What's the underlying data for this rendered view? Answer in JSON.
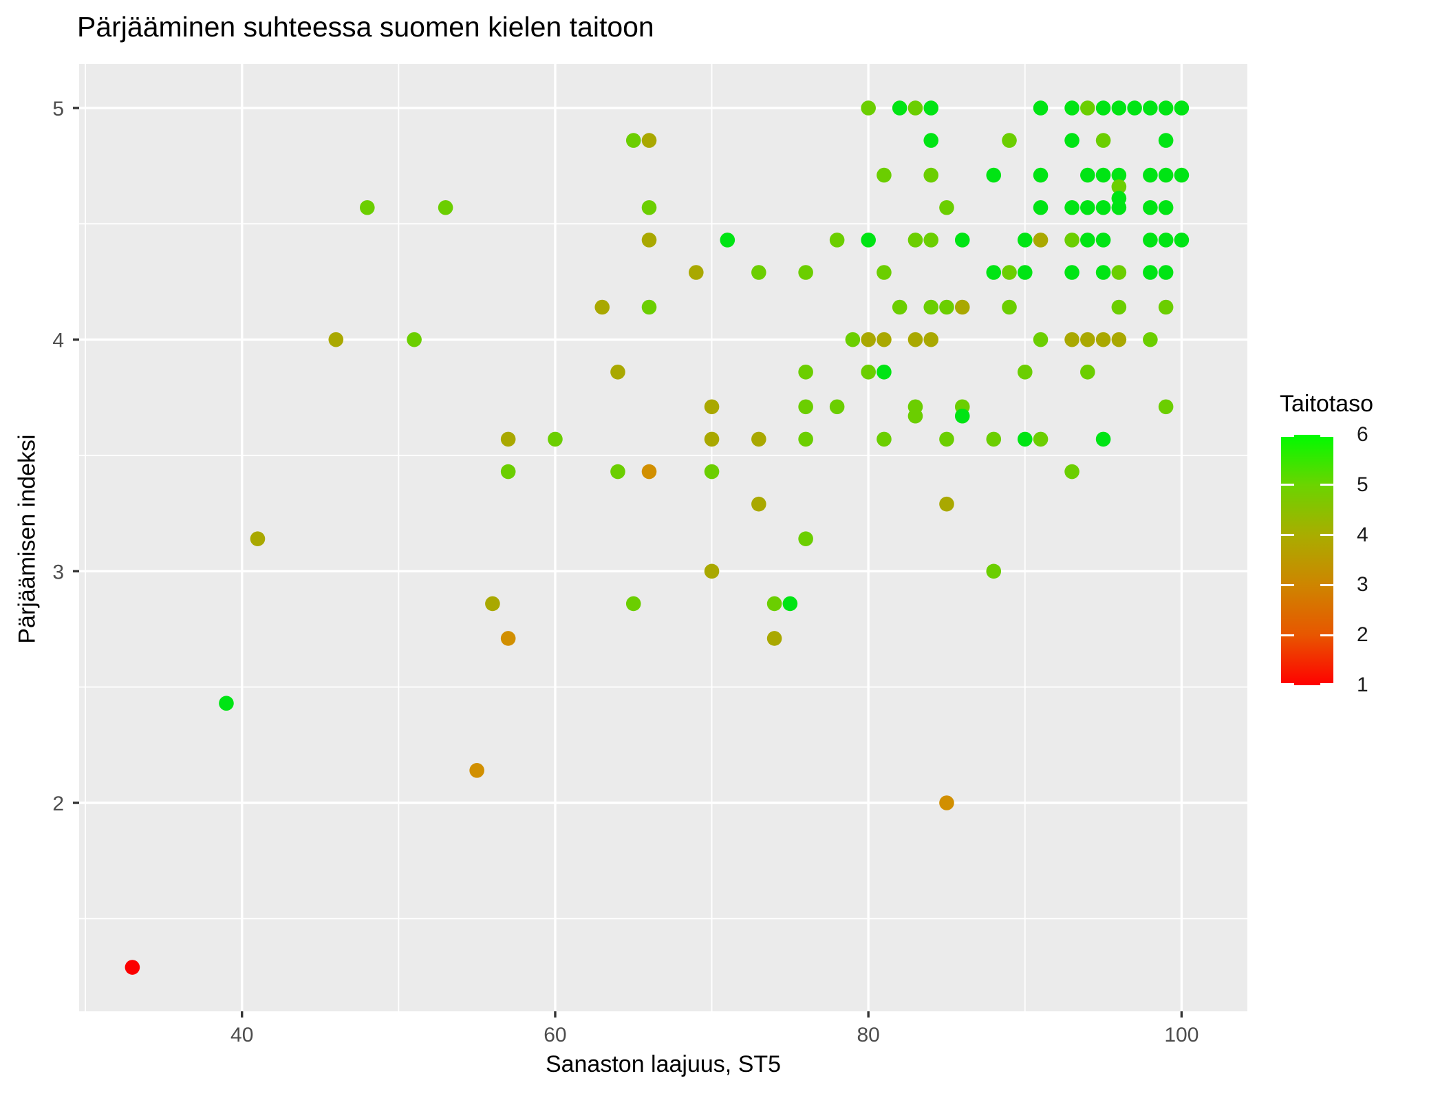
{
  "title": "Pärjääminen suhteessa suomen kielen taitoon",
  "chart_data": {
    "type": "scatter",
    "title": "Pärjääminen suhteessa suomen kielen taitoon",
    "xlabel": "Sanaston laajuus, ST5",
    "ylabel": "Pärjäämisen indeksi",
    "x_ticks": [
      40,
      60,
      80,
      100
    ],
    "x_minor_ticks": [
      30,
      50,
      70,
      90
    ],
    "x_range": [
      29.6,
      104.2
    ],
    "y_ticks": [
      5,
      4,
      3,
      2
    ],
    "y_minor_ticks": [
      4.5,
      3.5,
      2.5,
      1.5
    ],
    "y_range": [
      1.1,
      5.19
    ],
    "grid": true,
    "panel_background": "#EBEBEB",
    "gridline_color": "#FFFFFF",
    "tick_color": "#333333",
    "tick_label_color": "#4D4D4D",
    "legend": {
      "title": "Taitotaso",
      "position": "right",
      "min": 1,
      "max": 6,
      "ticks": [
        6,
        5,
        4,
        3,
        2,
        1
      ],
      "gradient_stops": [
        "#FF0000",
        "#E85600",
        "#CE8500",
        "#A9AD00",
        "#6BD400",
        "#00FB00"
      ]
    },
    "color_scale": {
      "1": "#FB0000",
      "2": "#E85600",
      "3": "#D18F00",
      "4": "#A9A800",
      "5": "#6BCE00",
      "6": "#00E414"
    },
    "series_name": "Taitotaso",
    "points": [
      [
        80,
        5.0,
        5
      ],
      [
        82,
        5.0,
        6
      ],
      [
        83,
        5.0,
        5
      ],
      [
        84,
        5.0,
        6
      ],
      [
        91,
        5.0,
        6
      ],
      [
        93,
        5.0,
        6
      ],
      [
        94,
        5.0,
        5
      ],
      [
        95,
        5.0,
        6
      ],
      [
        96,
        5.0,
        6
      ],
      [
        97,
        5.0,
        6
      ],
      [
        98,
        5.0,
        6
      ],
      [
        99,
        5.0,
        6
      ],
      [
        100,
        5.0,
        6
      ],
      [
        65,
        4.86,
        5
      ],
      [
        66,
        4.86,
        4
      ],
      [
        84,
        4.86,
        6
      ],
      [
        89,
        4.86,
        5
      ],
      [
        93,
        4.86,
        6
      ],
      [
        95,
        4.86,
        5
      ],
      [
        99,
        4.86,
        6
      ],
      [
        81,
        4.71,
        5
      ],
      [
        84,
        4.71,
        5
      ],
      [
        88,
        4.71,
        6
      ],
      [
        91,
        4.71,
        6
      ],
      [
        94,
        4.71,
        6
      ],
      [
        95,
        4.71,
        6
      ],
      [
        96,
        4.71,
        6
      ],
      [
        96,
        4.66,
        5
      ],
      [
        98,
        4.71,
        6
      ],
      [
        99,
        4.71,
        6
      ],
      [
        100,
        4.71,
        6
      ],
      [
        48,
        4.57,
        5
      ],
      [
        53,
        4.57,
        5
      ],
      [
        66,
        4.57,
        5
      ],
      [
        85,
        4.57,
        5
      ],
      [
        91,
        4.57,
        6
      ],
      [
        93,
        4.57,
        6
      ],
      [
        94,
        4.57,
        6
      ],
      [
        95,
        4.57,
        6
      ],
      [
        96,
        4.61,
        6
      ],
      [
        96,
        4.57,
        6
      ],
      [
        98,
        4.57,
        6
      ],
      [
        99,
        4.57,
        6
      ],
      [
        66,
        4.43,
        4
      ],
      [
        71,
        4.43,
        6
      ],
      [
        78,
        4.43,
        5
      ],
      [
        80,
        4.43,
        6
      ],
      [
        83,
        4.43,
        5
      ],
      [
        84,
        4.43,
        5
      ],
      [
        86,
        4.43,
        6
      ],
      [
        90,
        4.43,
        6
      ],
      [
        91,
        4.43,
        4
      ],
      [
        93,
        4.43,
        5
      ],
      [
        94,
        4.43,
        6
      ],
      [
        95,
        4.43,
        6
      ],
      [
        98,
        4.43,
        6
      ],
      [
        99,
        4.43,
        6
      ],
      [
        100,
        4.43,
        6
      ],
      [
        69,
        4.29,
        4
      ],
      [
        73,
        4.29,
        5
      ],
      [
        76,
        4.29,
        5
      ],
      [
        81,
        4.29,
        5
      ],
      [
        88,
        4.29,
        6
      ],
      [
        89,
        4.29,
        5
      ],
      [
        90,
        4.29,
        6
      ],
      [
        93,
        4.29,
        6
      ],
      [
        95,
        4.29,
        6
      ],
      [
        96,
        4.29,
        5
      ],
      [
        98,
        4.29,
        6
      ],
      [
        99,
        4.29,
        6
      ],
      [
        63,
        4.14,
        4
      ],
      [
        66,
        4.14,
        5
      ],
      [
        82,
        4.14,
        5
      ],
      [
        84,
        4.14,
        5
      ],
      [
        85,
        4.14,
        5
      ],
      [
        86,
        4.14,
        4
      ],
      [
        89,
        4.14,
        5
      ],
      [
        96,
        4.14,
        5
      ],
      [
        99,
        4.14,
        5
      ],
      [
        46,
        4.0,
        4
      ],
      [
        51,
        4.0,
        5
      ],
      [
        79,
        4.0,
        5
      ],
      [
        80,
        4.0,
        4
      ],
      [
        81,
        4.0,
        4
      ],
      [
        83,
        4.0,
        4
      ],
      [
        84,
        4.0,
        4
      ],
      [
        91,
        4.0,
        5
      ],
      [
        93,
        4.0,
        4
      ],
      [
        94,
        4.0,
        4
      ],
      [
        95,
        4.0,
        4
      ],
      [
        96,
        4.0,
        4
      ],
      [
        98,
        4.0,
        5
      ],
      [
        64,
        3.86,
        4
      ],
      [
        76,
        3.86,
        5
      ],
      [
        80,
        3.86,
        5
      ],
      [
        81,
        3.86,
        6
      ],
      [
        90,
        3.86,
        5
      ],
      [
        94,
        3.86,
        5
      ],
      [
        70,
        3.71,
        4
      ],
      [
        76,
        3.71,
        5
      ],
      [
        78,
        3.71,
        5
      ],
      [
        83,
        3.71,
        5
      ],
      [
        83,
        3.67,
        5
      ],
      [
        86,
        3.71,
        5
      ],
      [
        86,
        3.67,
        6
      ],
      [
        99,
        3.71,
        5
      ],
      [
        57,
        3.57,
        4
      ],
      [
        60,
        3.57,
        5
      ],
      [
        70,
        3.57,
        4
      ],
      [
        73,
        3.57,
        4
      ],
      [
        76,
        3.57,
        5
      ],
      [
        81,
        3.57,
        5
      ],
      [
        85,
        3.57,
        5
      ],
      [
        88,
        3.57,
        5
      ],
      [
        90,
        3.57,
        6
      ],
      [
        91,
        3.57,
        5
      ],
      [
        95,
        3.57,
        6
      ],
      [
        57,
        3.43,
        5
      ],
      [
        64,
        3.43,
        5
      ],
      [
        66,
        3.43,
        3
      ],
      [
        70,
        3.43,
        5
      ],
      [
        93,
        3.43,
        5
      ],
      [
        73,
        3.29,
        4
      ],
      [
        85,
        3.29,
        4
      ],
      [
        41,
        3.14,
        4
      ],
      [
        76,
        3.14,
        5
      ],
      [
        70,
        3.0,
        4
      ],
      [
        88,
        3.0,
        5
      ],
      [
        56,
        2.86,
        4
      ],
      [
        65,
        2.86,
        5
      ],
      [
        74,
        2.86,
        5
      ],
      [
        75,
        2.86,
        6
      ],
      [
        57,
        2.71,
        3
      ],
      [
        74,
        2.71,
        4
      ],
      [
        39,
        2.43,
        6
      ],
      [
        55,
        2.14,
        3
      ],
      [
        85,
        2.0,
        3
      ],
      [
        33,
        1.29,
        1
      ]
    ]
  }
}
